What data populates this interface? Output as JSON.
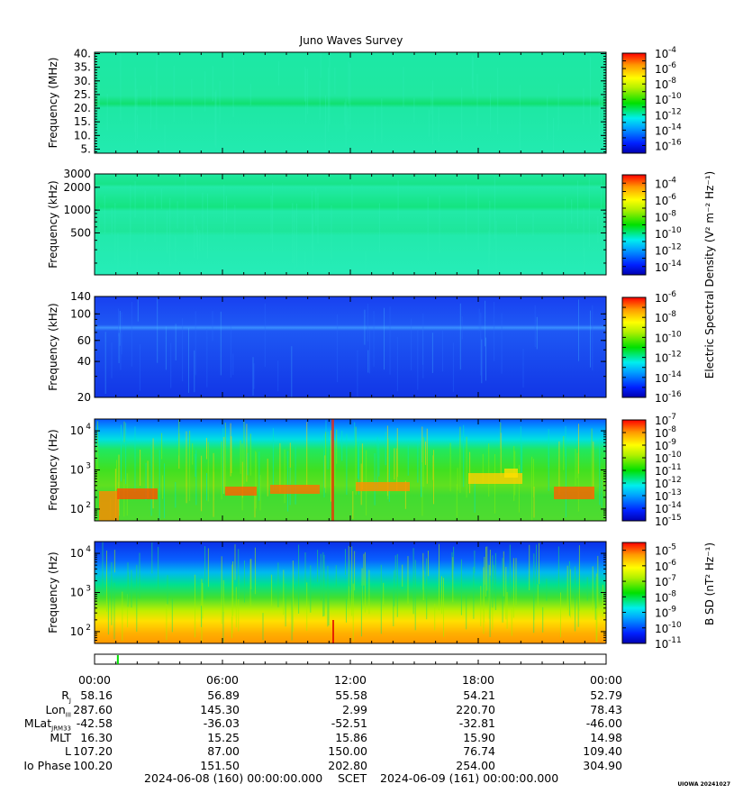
{
  "chart_data": {
    "type": "heatmap",
    "title": "Juno Waves Survey",
    "panels": [
      {
        "id": "hfr-high",
        "ylabel": "Frequency (MHz)",
        "yscale": "linear",
        "ylim": [
          3.5,
          40.5
        ],
        "yticks": [
          {
            "v": 5,
            "label": "5."
          },
          {
            "v": 10,
            "label": "10."
          },
          {
            "v": 15,
            "label": "15."
          },
          {
            "v": 20,
            "label": "20."
          },
          {
            "v": 25,
            "label": "25."
          },
          {
            "v": 30,
            "label": "30."
          },
          {
            "v": 35,
            "label": "35."
          },
          {
            "v": 40,
            "label": "40."
          }
        ],
        "colorbar": {
          "range_exp": [
            -17,
            -4
          ],
          "labels": [
            -4,
            -6,
            -8,
            -10,
            -12,
            -14,
            -16
          ]
        }
      },
      {
        "id": "hfr-low",
        "ylabel": "Frequency (kHz)",
        "yscale": "log",
        "ylim": [
          140,
          3000
        ],
        "yticks": [
          {
            "v": 500,
            "label": "500"
          },
          {
            "v": 1000,
            "label": "1000"
          },
          {
            "v": 2000,
            "label": "2000"
          },
          {
            "v": 3000,
            "label": "3000"
          }
        ],
        "colorbar": {
          "range_exp": [
            -15,
            -3
          ],
          "labels": [
            -4,
            -6,
            -8,
            -10,
            -12,
            -14
          ]
        }
      },
      {
        "id": "lfr-high",
        "ylabel": "Frequency (kHz)",
        "yscale": "log",
        "ylim": [
          20,
          140
        ],
        "yticks": [
          {
            "v": 20,
            "label": "20"
          },
          {
            "v": 40,
            "label": "40"
          },
          {
            "v": 60,
            "label": "60"
          },
          {
            "v": 100,
            "label": "100"
          },
          {
            "v": 140,
            "label": "140"
          }
        ],
        "colorbar": {
          "range_exp": [
            -16,
            -6
          ],
          "labels": [
            -6,
            -8,
            -10,
            -12,
            -14,
            -16
          ]
        }
      },
      {
        "id": "lfr-low",
        "ylabel": "Frequency (Hz)",
        "yscale": "log",
        "ylim": [
          50,
          20000
        ],
        "yticks": [
          {
            "v": 100,
            "label": "10",
            "sup": "2"
          },
          {
            "v": 1000,
            "label": "10",
            "sup": "3"
          },
          {
            "v": 10000,
            "label": "10",
            "sup": "4"
          }
        ],
        "colorbar": {
          "range_exp": [
            -15,
            -7
          ],
          "labels": [
            -7,
            -8,
            -9,
            -10,
            -11,
            -12,
            -13,
            -14,
            -15
          ]
        }
      },
      {
        "id": "magnetic",
        "ylabel": "Frequency (Hz)",
        "yscale": "log",
        "ylim": [
          50,
          20000
        ],
        "yticks": [
          {
            "v": 100,
            "label": "10",
            "sup": "2"
          },
          {
            "v": 1000,
            "label": "10",
            "sup": "3"
          },
          {
            "v": 10000,
            "label": "10",
            "sup": "4"
          }
        ],
        "colorbar": {
          "range_exp": [
            -11,
            -4.5
          ],
          "labels": [
            -5,
            -6,
            -7,
            -8,
            -9,
            -10,
            -11
          ]
        }
      }
    ],
    "colorbar_title_electric": "Electric Spectral Density (V² m⁻² Hz⁻¹)",
    "colorbar_title_magnetic": "B SD (nT² Hz⁻¹)",
    "x_hours": [
      0,
      6,
      12,
      18,
      24
    ],
    "x_tick_labels": [
      "00:00",
      "06:00",
      "12:00",
      "18:00",
      "00:00"
    ],
    "status_bar_green_hour": 1.05
  },
  "ephemeris": {
    "rows": [
      {
        "label": "R",
        "sub": "J",
        "values": [
          "58.16",
          "56.89",
          "55.58",
          "54.21",
          "52.79"
        ]
      },
      {
        "label": "Lon",
        "sub": "III",
        "values": [
          "287.60",
          "145.30",
          "2.99",
          "220.70",
          "78.43"
        ]
      },
      {
        "label": "MLat",
        "sub": "JRM33",
        "values": [
          "-42.58",
          "-36.03",
          "-52.51",
          "-32.81",
          "-46.00"
        ]
      },
      {
        "label": "MLT",
        "sub": "",
        "values": [
          "16.30",
          "15.25",
          "15.86",
          "15.90",
          "14.98"
        ]
      },
      {
        "label": "L",
        "sub": "",
        "values": [
          "107.20",
          "87.00",
          "150.00",
          "76.74",
          "109.40"
        ]
      },
      {
        "label": "Io Phase",
        "sub": "",
        "values": [
          "100.20",
          "151.50",
          "202.80",
          "254.00",
          "304.90"
        ]
      }
    ]
  },
  "footer": {
    "start": "2024-06-08 (160) 00:00:00.000",
    "scet": "SCET",
    "end": "2024-06-09 (161) 00:00:00.000"
  },
  "credit": "UIOWA 20241027"
}
